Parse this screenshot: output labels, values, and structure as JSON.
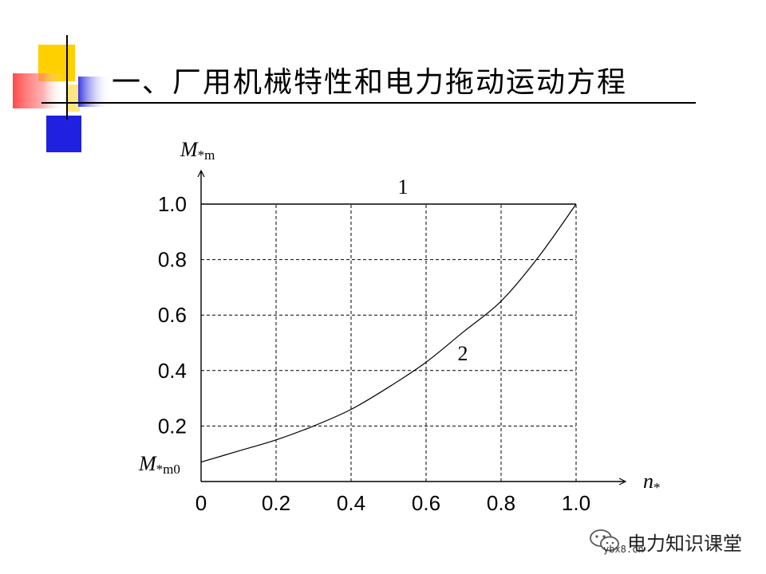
{
  "slide": {
    "title": "一、厂用机械特性和电力拖动运动方程"
  },
  "chart_data": {
    "type": "line",
    "x": [
      0,
      0.1,
      0.2,
      0.3,
      0.4,
      0.5,
      0.6,
      0.7,
      0.8,
      0.9,
      1.0
    ],
    "xticks": [
      "0",
      "0.2",
      "0.4",
      "0.6",
      "0.8",
      "1.0"
    ],
    "yticks": [
      "0.2",
      "0.4",
      "0.6",
      "0.8",
      "1.0"
    ],
    "xlim": [
      0,
      1.0
    ],
    "ylim": [
      0,
      1.0
    ],
    "grid": true,
    "xlabel": {
      "main": "n",
      "sub": "*"
    },
    "ylabel": {
      "main": "M",
      "sub": "*m"
    },
    "y_intercept_label": {
      "main": "M",
      "sub": "*m0"
    },
    "series": [
      {
        "name": "1",
        "x": [
          0,
          1.0
        ],
        "values": [
          1.0,
          1.0
        ]
      },
      {
        "name": "2",
        "x": [
          0,
          0.1,
          0.2,
          0.3,
          0.4,
          0.5,
          0.6,
          0.7,
          0.8,
          0.9,
          1.0
        ],
        "values": [
          0.07,
          0.11,
          0.15,
          0.2,
          0.26,
          0.34,
          0.43,
          0.54,
          0.65,
          0.81,
          1.0
        ]
      }
    ]
  },
  "watermark": {
    "brand": "电力知识课堂",
    "url": "ybx8.cn",
    "icon": "wechat-icon"
  },
  "colors": {
    "yellow": "#FFD000",
    "blue": "#2020E0",
    "red": "#FF5050",
    "axis": "#000000"
  }
}
